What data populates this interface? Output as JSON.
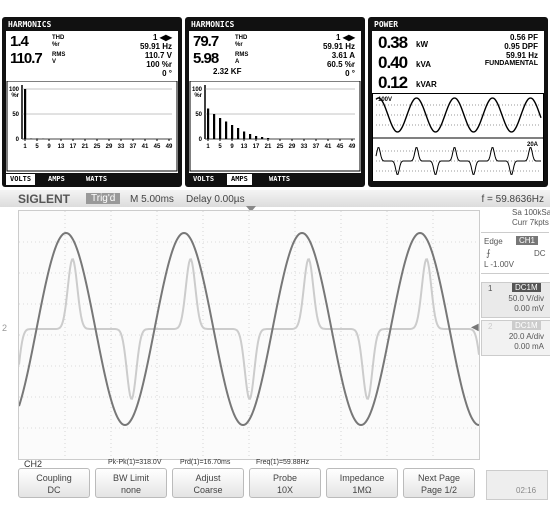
{
  "panels": [
    {
      "title": "HARMONICS",
      "readings": [
        {
          "value": "1.4",
          "label": "THD",
          "unit": "%r"
        },
        {
          "value": "110.7",
          "label": "RMS",
          "unit": "V"
        }
      ],
      "right": [
        "1 ◀▶",
        "59.91 Hz",
        "110.7 V",
        "100 %r",
        "0 °"
      ],
      "chart": {
        "type": "bar",
        "yunit": "%r",
        "ylim": [
          0,
          100
        ],
        "yticks": [
          0,
          50,
          100
        ],
        "xlim": [
          0,
          50
        ],
        "xticks": [
          1,
          5,
          9,
          13,
          17,
          21,
          25,
          29,
          33,
          37,
          41,
          45,
          49
        ],
        "values": [
          100,
          0,
          1,
          0,
          1,
          0,
          0.5
        ]
      },
      "tabs": [
        "VOLTS",
        "AMPS",
        "WATTS"
      ],
      "active_tab": 0
    },
    {
      "title": "HARMONICS",
      "readings": [
        {
          "value": "79.7",
          "label": "THD",
          "unit": "%r"
        },
        {
          "value": "5.98",
          "label": "RMS",
          "unit": "A"
        }
      ],
      "extra": "2.32 KF",
      "right": [
        "1 ◀▶",
        "59.91 Hz",
        "3.61 A",
        "60.5 %r",
        "0 °"
      ],
      "chart": {
        "type": "bar",
        "yunit": "%r",
        "ylim": [
          0,
          100
        ],
        "yticks": [
          0,
          50,
          100
        ],
        "xlim": [
          0,
          50
        ],
        "xticks": [
          1,
          5,
          9,
          13,
          17,
          21,
          25,
          29,
          33,
          37,
          41,
          45,
          49
        ],
        "values": [
          61,
          0,
          50,
          0,
          42,
          0,
          35,
          0,
          28,
          0,
          22,
          0,
          15,
          0,
          10,
          0,
          6,
          0,
          4,
          0,
          2
        ]
      },
      "tabs": [
        "VOLTS",
        "AMPS",
        "WATTS"
      ],
      "active_tab": 1
    },
    {
      "title": "POWER",
      "readings": [
        {
          "value": "0.38",
          "unit": "kW"
        },
        {
          "value": "0.40",
          "unit": "kVA"
        },
        {
          "value": "0.12",
          "unit": "kVAR"
        }
      ],
      "right": [
        "0.56 PF",
        "0.95 DPF",
        "59.91 Hz",
        "FUNDAMENTAL"
      ],
      "scales": [
        "100V",
        "20A"
      ]
    }
  ],
  "scope": {
    "brand": "SIGLENT",
    "status": "Trig'd",
    "timebase": "M 5.00ms",
    "delay": "Delay 0.00µs",
    "freq": "f = 59.8636Hz",
    "sample": [
      "Sa 100kSa/s",
      "Curr 7kpts"
    ],
    "trigger": {
      "type": "Edge",
      "source": "CH1",
      "coupling": "DC",
      "level": "L -1.00V"
    },
    "channels": [
      {
        "num": "1",
        "coupling": "DC1M",
        "scale": "50.0 V/div",
        "offset": "0.00 mV"
      },
      {
        "num": "2",
        "coupling": "DC1M",
        "scale": "20.0 A/div",
        "offset": "0.00 mA"
      }
    ],
    "active_channel": "CH2",
    "measurements": [
      "Pk-Pk(1)=318.0V",
      "Prd(1)=16.70ms",
      "Freq(1)=59.88Hz"
    ],
    "softkeys": [
      {
        "label": "Coupling",
        "value": "DC"
      },
      {
        "label": "BW Limit",
        "value": "none"
      },
      {
        "label": "Adjust",
        "value": "Coarse"
      },
      {
        "label": "Probe",
        "value": "10X"
      },
      {
        "label": "Impedance",
        "value": "1MΩ"
      },
      {
        "label": "Next Page",
        "value": "Page 1/2"
      }
    ],
    "clock": "02:16"
  }
}
